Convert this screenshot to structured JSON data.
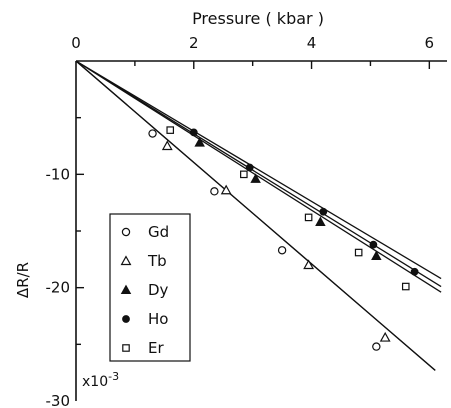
{
  "chart_data": {
    "type": "line",
    "title": "",
    "xlabel": "Pressure ( kbar )",
    "ylabel": "ΔR/R",
    "y_multiplier_label": "x10",
    "y_multiplier_exponent": "-3",
    "xlim": [
      0,
      6.3
    ],
    "ylim": [
      -30,
      0
    ],
    "x_ticks": [
      {
        "value": 0,
        "label": "0"
      },
      {
        "value": 2,
        "label": "2"
      },
      {
        "value": 4,
        "label": "4"
      },
      {
        "value": 6,
        "label": "6"
      }
    ],
    "x_minor_ticks": [
      1,
      3,
      5
    ],
    "y_ticks": [
      {
        "value": 0,
        "label": "0"
      },
      {
        "value": -10,
        "label": "-10"
      },
      {
        "value": -20,
        "label": "-20"
      },
      {
        "value": -30,
        "label": "-30"
      }
    ],
    "y_minor_ticks": [
      -5,
      -15,
      -25
    ],
    "legend_position": "lower-left",
    "series": [
      {
        "name": "Gd",
        "marker": "circle-open",
        "line": [
          [
            0,
            0
          ],
          [
            6.1,
            -27.3
          ]
        ],
        "points": [
          [
            1.3,
            -6.4
          ],
          [
            2.35,
            -11.5
          ],
          [
            3.5,
            -16.7
          ],
          [
            5.1,
            -25.2
          ]
        ]
      },
      {
        "name": "Tb",
        "marker": "triangle-open",
        "line": [
          [
            0,
            0
          ],
          [
            6.1,
            -27.3
          ]
        ],
        "points": [
          [
            1.55,
            -7.5
          ],
          [
            2.55,
            -11.4
          ],
          [
            3.95,
            -18.0
          ],
          [
            5.25,
            -24.4
          ]
        ]
      },
      {
        "name": "Dy",
        "marker": "triangle-filled",
        "line": [
          [
            0,
            0
          ],
          [
            6.2,
            -19.9
          ]
        ],
        "points": [
          [
            2.1,
            -7.2
          ],
          [
            3.05,
            -10.4
          ],
          [
            4.15,
            -14.2
          ],
          [
            5.1,
            -17.2
          ]
        ]
      },
      {
        "name": "Ho",
        "marker": "circle-filled",
        "line": [
          [
            0,
            0
          ],
          [
            6.2,
            -19.2
          ]
        ],
        "points": [
          [
            2.0,
            -6.3
          ],
          [
            2.95,
            -9.4
          ],
          [
            4.2,
            -13.3
          ],
          [
            5.05,
            -16.2
          ],
          [
            5.75,
            -18.6
          ]
        ]
      },
      {
        "name": "Er",
        "marker": "square-open",
        "line": [
          [
            0,
            0
          ],
          [
            6.2,
            -20.4
          ]
        ],
        "points": [
          [
            1.6,
            -6.1
          ],
          [
            2.85,
            -10.0
          ],
          [
            3.95,
            -13.8
          ],
          [
            4.8,
            -16.9
          ],
          [
            5.6,
            -19.9
          ]
        ]
      }
    ]
  }
}
